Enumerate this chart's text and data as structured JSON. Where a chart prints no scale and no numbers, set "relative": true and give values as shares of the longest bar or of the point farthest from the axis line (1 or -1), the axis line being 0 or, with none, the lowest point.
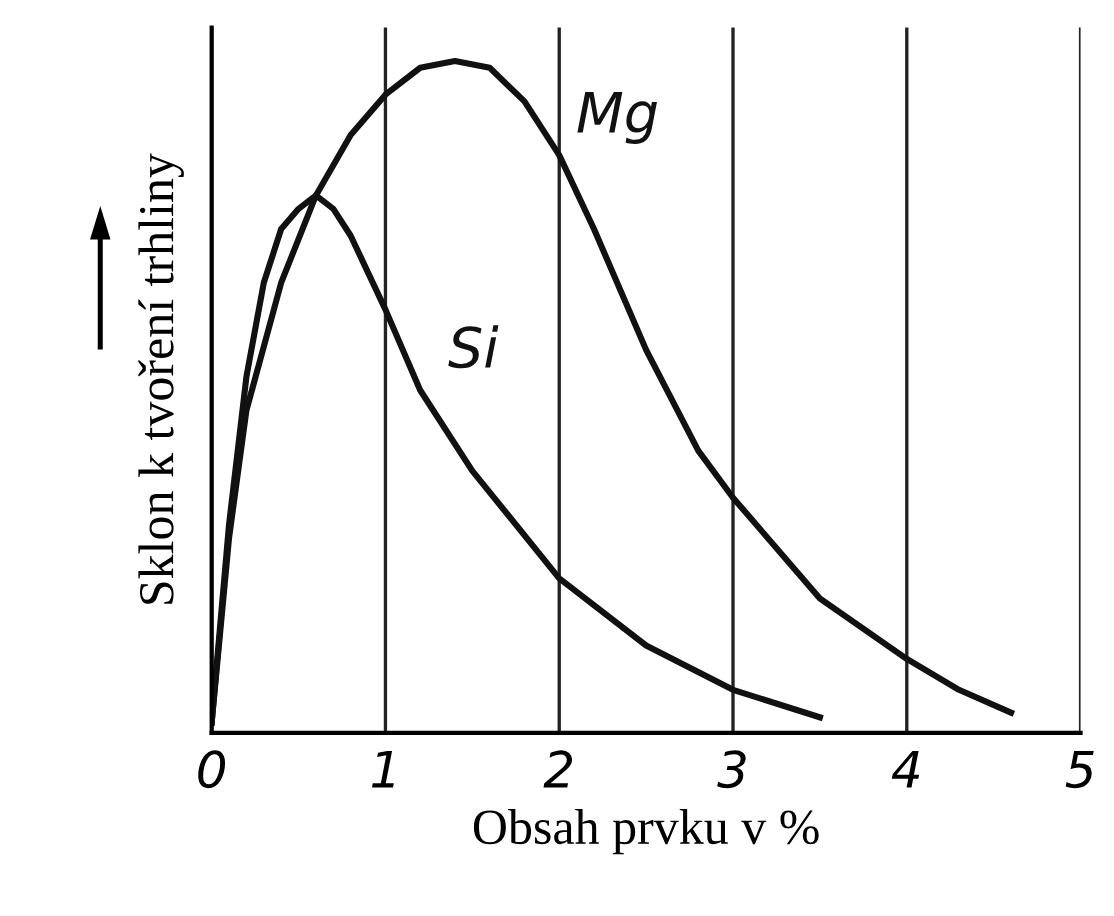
{
  "chart_data": {
    "type": "line",
    "relative": true,
    "xlabel": "Obsah prvku v %",
    "ylabel": "Sklon k tvoření trhliny",
    "xlim": [
      0,
      5
    ],
    "xticks": [
      0,
      1,
      2,
      3,
      4,
      5
    ],
    "grid": "x",
    "legend": false,
    "marker": "none",
    "line_style": "solid",
    "series": [
      {
        "name": "Si",
        "color": "#111111",
        "x": [
          0,
          0.1,
          0.2,
          0.3,
          0.4,
          0.5,
          0.6,
          0.7,
          0.8,
          1.0,
          1.2,
          1.5,
          2.0,
          2.5,
          3.0,
          3.5
        ],
        "values": [
          0.015,
          0.31,
          0.53,
          0.67,
          0.75,
          0.78,
          0.8,
          0.78,
          0.74,
          0.63,
          0.51,
          0.39,
          0.23,
          0.13,
          0.064,
          0.023
        ]
      },
      {
        "name": "Mg",
        "color": "#111111",
        "x": [
          0,
          0.1,
          0.2,
          0.4,
          0.6,
          0.8,
          1.0,
          1.2,
          1.4,
          1.6,
          1.8,
          2.0,
          2.2,
          2.5,
          2.8,
          3.0,
          3.5,
          4.0,
          4.3,
          4.6
        ],
        "values": [
          0.015,
          0.29,
          0.48,
          0.67,
          0.8,
          0.89,
          0.95,
          0.99,
          1.0,
          0.99,
          0.94,
          0.86,
          0.75,
          0.57,
          0.42,
          0.35,
          0.2,
          0.11,
          0.064,
          0.03
        ]
      }
    ]
  }
}
